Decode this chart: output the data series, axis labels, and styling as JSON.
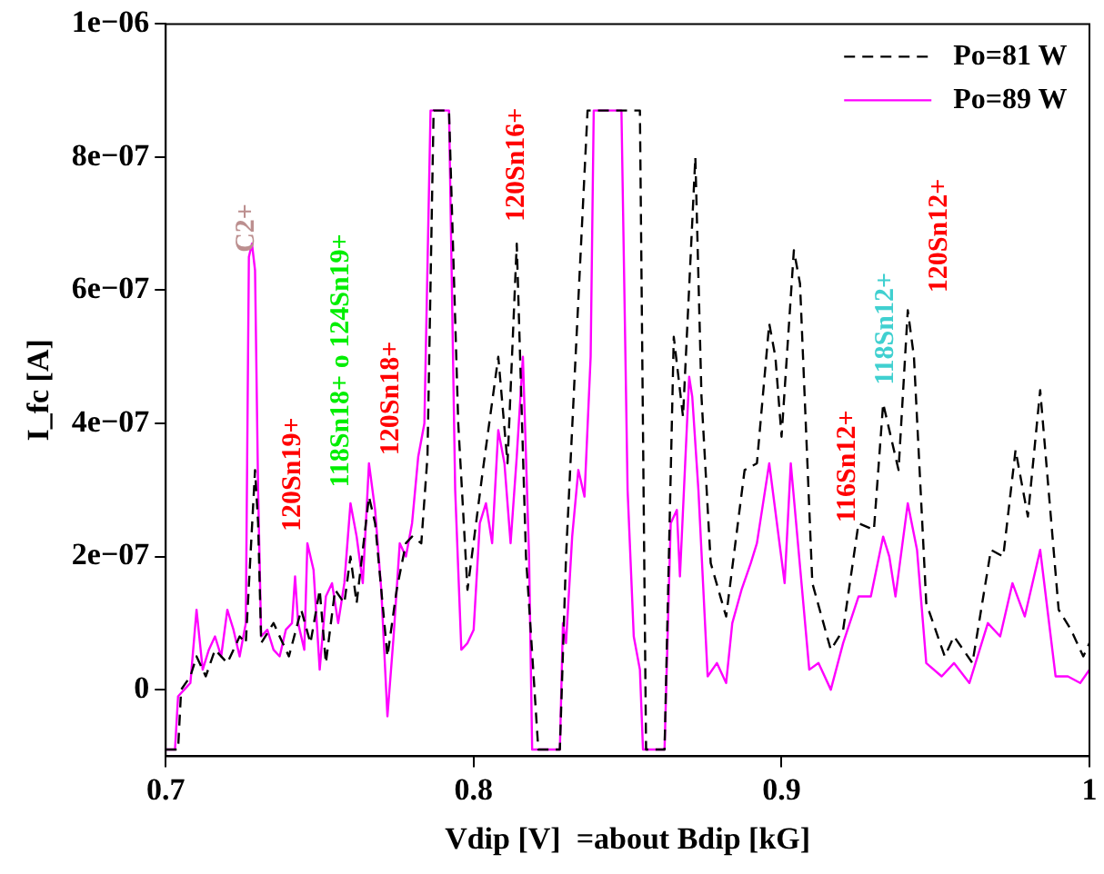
{
  "chart_data": {
    "type": "line",
    "xlabel": "Vdip [V]  =about Bdip [kG]",
    "ylabel": "I_fc [A]",
    "xlim": [
      0.7,
      1.0
    ],
    "xticks": [
      0.7,
      0.8,
      0.9,
      1
    ],
    "ylim": [
      -1e-07,
      1e-06
    ],
    "yticks": [
      0,
      {
        "value": 2e-07,
        "label": "2e−07"
      },
      {
        "value": 4e-07,
        "label": "4e−07"
      },
      {
        "value": 6e-07,
        "label": "6e−07"
      },
      {
        "value": 8e-07,
        "label": "8e−07"
      },
      {
        "value": 1e-06,
        "label": "1e−06"
      }
    ],
    "grid": false,
    "legend": "top right",
    "marker": "none",
    "series": [
      {
        "name": "Po=81 W",
        "color": "#000000",
        "line_style": "dashed",
        "x": [
          0.7,
          0.704,
          0.705,
          0.708,
          0.71,
          0.713,
          0.716,
          0.72,
          0.724,
          0.726,
          0.729,
          0.73,
          0.731,
          0.735,
          0.74,
          0.744,
          0.747,
          0.75,
          0.752,
          0.755,
          0.758,
          0.76,
          0.762,
          0.766,
          0.768,
          0.772,
          0.775,
          0.778,
          0.78,
          0.783,
          0.785,
          0.787,
          0.792,
          0.795,
          0.798,
          0.803,
          0.808,
          0.811,
          0.814,
          0.817,
          0.821,
          0.828,
          0.83,
          0.833,
          0.837,
          0.854,
          0.856,
          0.862,
          0.865,
          0.868,
          0.872,
          0.874,
          0.877,
          0.882,
          0.888,
          0.892,
          0.896,
          0.898,
          0.9,
          0.904,
          0.906,
          0.91,
          0.916,
          0.92,
          0.925,
          0.93,
          0.933,
          0.938,
          0.941,
          0.943,
          0.947,
          0.953,
          0.956,
          0.962,
          0.968,
          0.972,
          0.976,
          0.98,
          0.984,
          0.99,
          0.994,
          0.998,
          1.0
        ],
        "values": [
          -9e-08,
          -9e-08,
          0,
          2e-08,
          5e-08,
          2e-08,
          6e-08,
          4e-08,
          8e-08,
          7e-08,
          3.3e-07,
          2.5e-07,
          7e-08,
          1e-07,
          5e-08,
          1.2e-07,
          7e-08,
          1.5e-07,
          4e-08,
          1.5e-07,
          1.3e-07,
          2e-07,
          1.3e-07,
          2.9e-07,
          2.5e-07,
          5e-08,
          1.5e-07,
          2.2e-07,
          2.3e-07,
          2.2e-07,
          3.5e-07,
          8.7e-07,
          8.7e-07,
          4e-07,
          1.5e-07,
          3.3e-07,
          5e-07,
          3.4e-07,
          6.7e-07,
          2e-07,
          -9e-08,
          -9e-08,
          2e-07,
          4.9e-07,
          8.7e-07,
          8.7e-07,
          -9e-08,
          -9e-08,
          5.3e-07,
          4.1e-07,
          8e-07,
          4.4e-07,
          1.9e-07,
          1.1e-07,
          3.3e-07,
          3.4e-07,
          5.5e-07,
          5e-07,
          3.8e-07,
          6.6e-07,
          6.1e-07,
          1.6e-07,
          6e-08,
          9e-08,
          2.5e-07,
          2.4e-07,
          4.3e-07,
          3.3e-07,
          5.7e-07,
          5e-07,
          1.3e-07,
          5e-08,
          8e-08,
          4e-08,
          2.1e-07,
          2e-07,
          3.6e-07,
          2.6e-07,
          4.5e-07,
          1.2e-07,
          9e-08,
          5e-08,
          7e-08
        ]
      },
      {
        "name": "Po=89 W",
        "color": "#ff00ff",
        "line_style": "solid",
        "x": [
          0.7,
          0.703,
          0.704,
          0.706,
          0.708,
          0.71,
          0.712,
          0.714,
          0.716,
          0.718,
          0.72,
          0.722,
          0.724,
          0.726,
          0.727,
          0.728,
          0.729,
          0.73,
          0.731,
          0.733,
          0.735,
          0.737,
          0.739,
          0.741,
          0.742,
          0.743,
          0.745,
          0.746,
          0.748,
          0.75,
          0.752,
          0.754,
          0.756,
          0.758,
          0.76,
          0.762,
          0.764,
          0.766,
          0.768,
          0.77,
          0.772,
          0.774,
          0.776,
          0.778,
          0.78,
          0.782,
          0.784,
          0.786,
          0.792,
          0.794,
          0.796,
          0.798,
          0.8,
          0.802,
          0.804,
          0.806,
          0.808,
          0.81,
          0.812,
          0.814,
          0.816,
          0.818,
          0.819,
          0.828,
          0.829,
          0.83,
          0.832,
          0.834,
          0.836,
          0.838,
          0.839,
          0.848,
          0.85,
          0.852,
          0.854,
          0.855,
          0.862,
          0.864,
          0.866,
          0.867,
          0.87,
          0.871,
          0.873,
          0.876,
          0.879,
          0.882,
          0.884,
          0.887,
          0.89,
          0.892,
          0.896,
          0.901,
          0.903,
          0.909,
          0.912,
          0.916,
          0.92,
          0.925,
          0.929,
          0.933,
          0.935,
          0.937,
          0.941,
          0.944,
          0.947,
          0.952,
          0.956,
          0.961,
          0.967,
          0.971,
          0.975,
          0.979,
          0.984,
          0.989,
          0.993,
          0.997,
          1.0
        ],
        "values": [
          -9e-08,
          -9e-08,
          -1e-08,
          0,
          1e-08,
          1.2e-07,
          3e-08,
          6e-08,
          8e-08,
          5e-08,
          1.2e-07,
          9e-08,
          5e-08,
          1e-07,
          6.5e-07,
          6.7e-07,
          6.3e-07,
          3e-07,
          8e-08,
          9e-08,
          6e-08,
          5e-08,
          9e-08,
          1e-07,
          1.7e-07,
          1e-07,
          6e-08,
          2.2e-07,
          1.8e-07,
          3e-08,
          1.4e-07,
          1.6e-07,
          1e-07,
          1.6e-07,
          2.8e-07,
          2.3e-07,
          1.6e-07,
          3.4e-07,
          2.7e-07,
          1.5e-07,
          -4e-08,
          8e-08,
          2.2e-07,
          2e-07,
          2.5e-07,
          3.5e-07,
          4e-07,
          8.7e-07,
          8.7e-07,
          3e-07,
          6e-08,
          7e-08,
          9e-08,
          2.5e-07,
          2.8e-07,
          2.2e-07,
          3.9e-07,
          3.4e-07,
          2.2e-07,
          3.5e-07,
          5e-07,
          2e-07,
          -9e-08,
          -9e-08,
          1e-07,
          7e-08,
          2.3e-07,
          3.3e-07,
          2.9e-07,
          5e-07,
          8.7e-07,
          8.7e-07,
          3e-07,
          8e-08,
          3e-08,
          -9e-08,
          -9e-08,
          2.5e-07,
          2.7e-07,
          1.7e-07,
          4.7e-07,
          4.4e-07,
          3e-07,
          2e-08,
          4e-08,
          1e-08,
          1e-07,
          1.5e-07,
          1.9e-07,
          2.2e-07,
          3.4e-07,
          1.6e-07,
          3.4e-07,
          3e-08,
          4e-08,
          0,
          7e-08,
          1.4e-07,
          1.4e-07,
          2.3e-07,
          2e-07,
          1.4e-07,
          2.8e-07,
          2.1e-07,
          4e-08,
          2e-08,
          4e-08,
          1e-08,
          1e-07,
          8e-08,
          1.6e-07,
          1.1e-07,
          2.1e-07,
          2e-08,
          2e-08,
          1e-08,
          3e-08
        ]
      }
    ],
    "annotations": [
      "C2+",
      "120Sn19+",
      "118Sn18+ o 124Sn19+",
      "120Sn18+",
      "120Sn16+",
      "116Sn12+",
      "118Sn12+",
      "120Sn12+"
    ]
  }
}
